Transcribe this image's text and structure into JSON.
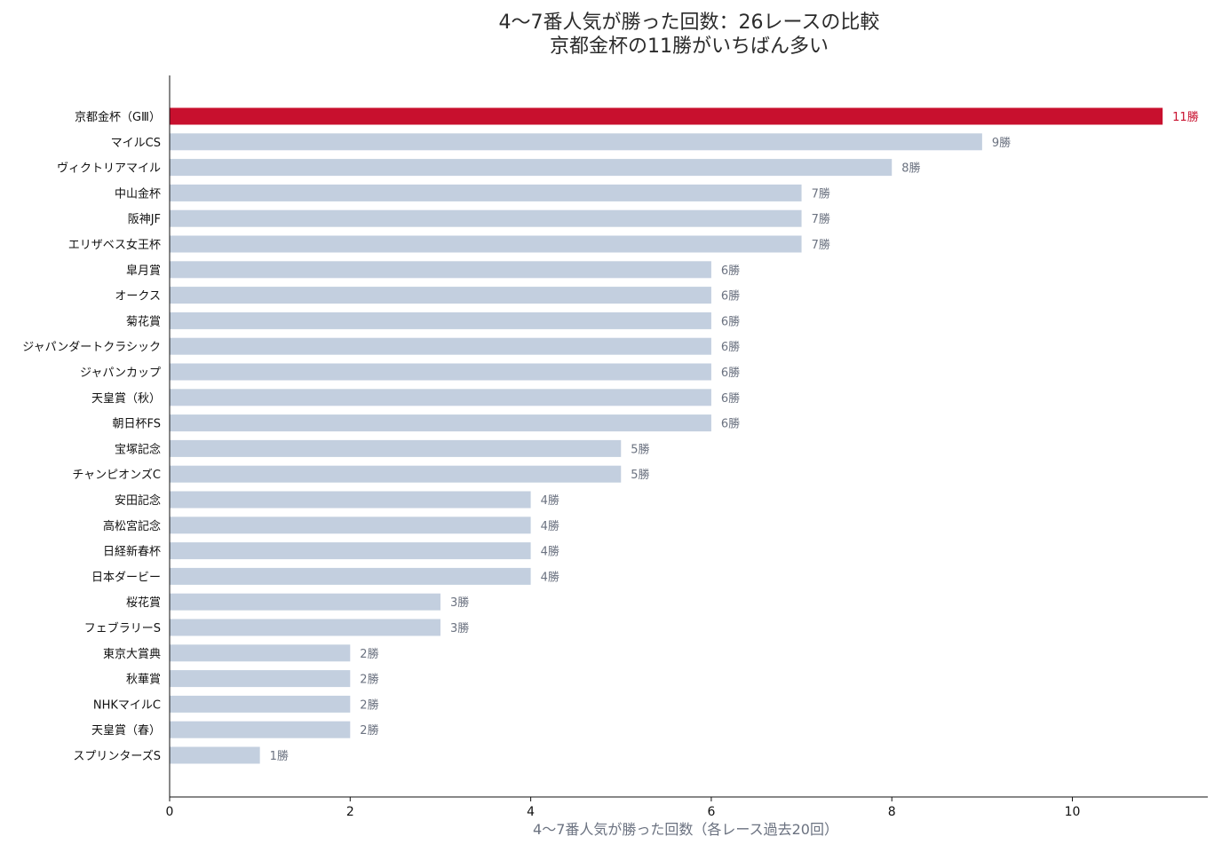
{
  "chart_data": {
    "type": "bar",
    "orientation": "horizontal",
    "title": [
      "4〜7番人気が勝った回数：26レースの比較",
      "京都金杯の11勝がいちばん多い"
    ],
    "xlabel": "4〜7番人気が勝った回数（各レース過去20回）",
    "ylabel": "",
    "xlim": [
      0,
      11.5
    ],
    "xticks": [
      0,
      2,
      4,
      6,
      8,
      10
    ],
    "grid": false,
    "value_suffix": "勝",
    "categories": [
      "京都金杯（GⅢ）",
      "マイルCS",
      "ヴィクトリアマイル",
      "中山金杯",
      "阪神JF",
      "エリザベス女王杯",
      "皐月賞",
      "オークス",
      "菊花賞",
      "ジャパンダートクラシック",
      "ジャパンカップ",
      "天皇賞（秋）",
      "朝日杯FS",
      "宝塚記念",
      "チャンピオンズC",
      "安田記念",
      "高松宮記念",
      "日経新春杯",
      "日本ダービー",
      "桜花賞",
      "フェブラリーS",
      "東京大賞典",
      "秋華賞",
      "NHKマイルC",
      "天皇賞（春）",
      "スプリンターズS"
    ],
    "values": [
      11,
      9,
      8,
      7,
      7,
      7,
      6,
      6,
      6,
      6,
      6,
      6,
      6,
      5,
      5,
      4,
      4,
      4,
      4,
      3,
      3,
      2,
      2,
      2,
      2,
      1
    ],
    "highlight_index": 0
  },
  "colors": {
    "highlight": "#c8102e",
    "bar": "#c3cfdf",
    "axis": "#111111",
    "value_text": "#6b7280",
    "title_text": "#2b2b2b"
  }
}
